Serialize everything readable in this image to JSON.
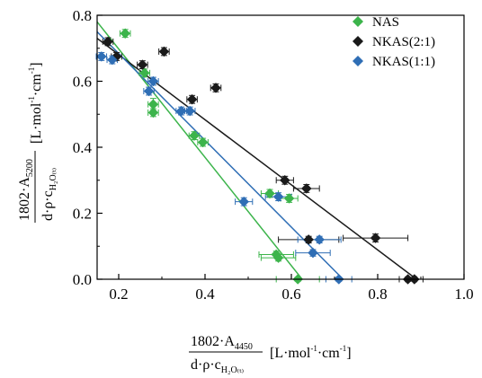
{
  "chart_data": {
    "type": "scatter",
    "xlim": [
      0.15,
      1.0
    ],
    "ylim": [
      0.0,
      0.8
    ],
    "x_ticks": [
      "0.2",
      "0.4",
      "0.6",
      "0.8",
      "1.0"
    ],
    "y_ticks": [
      "0.0",
      "0.2",
      "0.4",
      "0.6",
      "0.8"
    ],
    "x_tick_values": [
      0.2,
      0.4,
      0.6,
      0.8,
      1.0
    ],
    "y_tick_values": [
      0.0,
      0.2,
      0.4,
      0.6,
      0.8
    ],
    "xlabel": {
      "numerator": "1802·A",
      "numerator_sub": "4450",
      "denominator": "d·ρ·c",
      "denominator_sub": "H₂O₍ₜ₎",
      "unit_open": "[L·mol",
      "unit_sup1": "-1",
      "unit_mid": "·cm",
      "unit_sup2": "-1",
      "unit_close": "]"
    },
    "ylabel": {
      "numerator": "1802·A",
      "numerator_sub": "5200",
      "denominator": "d·ρ·c",
      "denominator_sub": "H₂O₍ₜ₎",
      "unit_open": "[L·mol",
      "unit_sup1": "-1",
      "unit_mid": "·cm",
      "unit_sup2": "-1",
      "unit_close": "]"
    },
    "legend_position": "top-right",
    "grid": false,
    "series": [
      {
        "name": "NAS",
        "color": "#3cb44b",
        "marker": "diamond",
        "points": [
          {
            "x": 0.215,
            "y": 0.745,
            "xerr": 0.012,
            "yerr": 0.012
          },
          {
            "x": 0.26,
            "y": 0.625,
            "xerr": 0.012,
            "yerr": 0.012
          },
          {
            "x": 0.28,
            "y": 0.53,
            "xerr": 0.012,
            "yerr": 0.018
          },
          {
            "x": 0.28,
            "y": 0.505,
            "xerr": 0.012,
            "yerr": 0.012
          },
          {
            "x": 0.375,
            "y": 0.435,
            "xerr": 0.012,
            "yerr": 0.012
          },
          {
            "x": 0.395,
            "y": 0.415,
            "xerr": 0.012,
            "yerr": 0.012
          },
          {
            "x": 0.55,
            "y": 0.26,
            "xerr": 0.02,
            "yerr": 0.012
          },
          {
            "x": 0.595,
            "y": 0.245,
            "xerr": 0.02,
            "yerr": 0.012
          },
          {
            "x": 0.565,
            "y": 0.075,
            "xerr": 0.04,
            "yerr": 0.01
          },
          {
            "x": 0.57,
            "y": 0.065,
            "xerr": 0.04,
            "yerr": 0.01
          },
          {
            "x": 0.615,
            "y": 0.0,
            "xerr": 0.05,
            "yerr": 0.006
          }
        ]
      },
      {
        "name": "NKAS(2:1)",
        "color": "#1a1a1a",
        "marker": "diamond",
        "points": [
          {
            "x": 0.175,
            "y": 0.72,
            "xerr": 0.012,
            "yerr": 0.012
          },
          {
            "x": 0.195,
            "y": 0.675,
            "xerr": 0.012,
            "yerr": 0.012
          },
          {
            "x": 0.255,
            "y": 0.65,
            "xerr": 0.012,
            "yerr": 0.012
          },
          {
            "x": 0.305,
            "y": 0.69,
            "xerr": 0.012,
            "yerr": 0.012
          },
          {
            "x": 0.37,
            "y": 0.545,
            "xerr": 0.012,
            "yerr": 0.012
          },
          {
            "x": 0.425,
            "y": 0.58,
            "xerr": 0.012,
            "yerr": 0.012
          },
          {
            "x": 0.585,
            "y": 0.3,
            "xerr": 0.02,
            "yerr": 0.012
          },
          {
            "x": 0.635,
            "y": 0.275,
            "xerr": 0.03,
            "yerr": 0.012
          },
          {
            "x": 0.64,
            "y": 0.12,
            "xerr": 0.07,
            "yerr": 0.01
          },
          {
            "x": 0.795,
            "y": 0.125,
            "xerr": 0.075,
            "yerr": 0.012
          },
          {
            "x": 0.87,
            "y": 0.0,
            "xerr": 0.02,
            "yerr": 0.006
          },
          {
            "x": 0.885,
            "y": 0.0,
            "xerr": 0.02,
            "yerr": 0.006
          }
        ]
      },
      {
        "name": "NKAS(1:1)",
        "color": "#2f6eb5",
        "marker": "diamond",
        "points": [
          {
            "x": 0.16,
            "y": 0.675,
            "xerr": 0.012,
            "yerr": 0.012
          },
          {
            "x": 0.185,
            "y": 0.665,
            "xerr": 0.012,
            "yerr": 0.012
          },
          {
            "x": 0.27,
            "y": 0.57,
            "xerr": 0.012,
            "yerr": 0.012
          },
          {
            "x": 0.28,
            "y": 0.6,
            "xerr": 0.012,
            "yerr": 0.012
          },
          {
            "x": 0.345,
            "y": 0.51,
            "xerr": 0.012,
            "yerr": 0.012
          },
          {
            "x": 0.365,
            "y": 0.51,
            "xerr": 0.012,
            "yerr": 0.012
          },
          {
            "x": 0.49,
            "y": 0.235,
            "xerr": 0.02,
            "yerr": 0.012
          },
          {
            "x": 0.57,
            "y": 0.25,
            "xerr": 0.03,
            "yerr": 0.012
          },
          {
            "x": 0.65,
            "y": 0.08,
            "xerr": 0.04,
            "yerr": 0.01
          },
          {
            "x": 0.665,
            "y": 0.12,
            "xerr": 0.05,
            "yerr": 0.01
          },
          {
            "x": 0.71,
            "y": 0.0,
            "xerr": 0.03,
            "yerr": 0.006
          }
        ]
      }
    ],
    "fit_lines": [
      {
        "series": "NAS",
        "x": [
          0.15,
          0.625
        ],
        "y": [
          0.78,
          0.0
        ]
      },
      {
        "series": "NKAS(2:1)",
        "x": [
          0.15,
          0.89
        ],
        "y": [
          0.73,
          0.0
        ]
      },
      {
        "series": "NKAS(1:1)",
        "x": [
          0.15,
          0.72
        ],
        "y": [
          0.75,
          0.0
        ]
      }
    ]
  }
}
